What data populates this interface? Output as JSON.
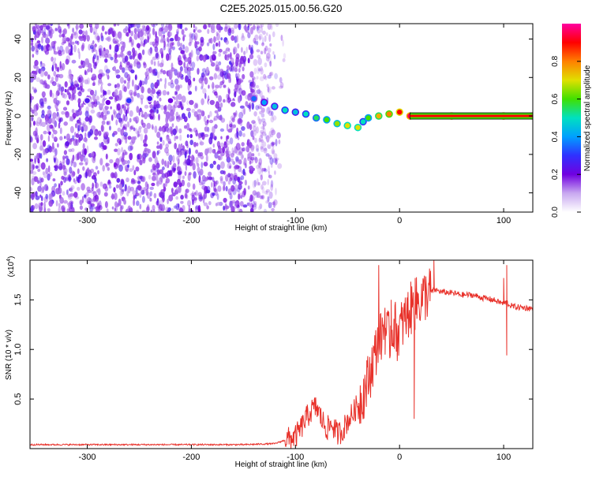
{
  "title": "C2E5.2025.015.00.56.G20",
  "chart_data": [
    {
      "type": "heatmap",
      "xlabel": "Height of straight line (km)",
      "ylabel": "Frequency (Hz)",
      "xlim": [
        -355,
        128
      ],
      "ylim": [
        -50,
        48
      ],
      "x_ticks": [
        -300,
        -200,
        -100,
        0,
        100
      ],
      "x_tick_labels": [
        "-300",
        "-200",
        "-100",
        "0",
        "100"
      ],
      "y_ticks": [
        -40,
        -20,
        0,
        20,
        40
      ],
      "y_tick_labels": [
        "-40",
        "-20",
        "0",
        "20",
        "40"
      ],
      "colorbar": {
        "label": "Normalized spectral amplitude",
        "range": [
          0,
          1
        ],
        "ticks": [
          0.0,
          0.2,
          0.4,
          0.6,
          0.8
        ],
        "tick_labels": [
          "0.0",
          "0.2",
          "0.4",
          "0.6",
          "0.8"
        ],
        "colormap": [
          "#ffffff",
          "#c8a8f0",
          "#7000e0",
          "#3030ff",
          "#00a0ff",
          "#00e0c0",
          "#40e000",
          "#e0e000",
          "#ff8000",
          "#ff0000",
          "#ff00a0"
        ]
      },
      "noise_region_x": [
        -355,
        -125
      ],
      "signal_track": {
        "x": [
          -300,
          -280,
          -260,
          -240,
          -220,
          -200,
          -180,
          -160,
          -140,
          -130,
          -120,
          -110,
          -100,
          -90,
          -80,
          -70,
          -60,
          -50,
          -40,
          -35,
          -30,
          -20,
          -10,
          0,
          10,
          50,
          100,
          128
        ],
        "frequency": [
          8,
          7,
          8,
          9,
          8,
          7,
          7,
          6,
          9,
          7,
          5,
          3,
          2,
          1,
          -1,
          -2,
          -4,
          -5,
          -6,
          -3,
          -1,
          0,
          1,
          2,
          0,
          0,
          0,
          0
        ],
        "amplitude": [
          0.25,
          0.2,
          0.3,
          0.25,
          0.2,
          0.15,
          0.15,
          0.15,
          0.35,
          0.4,
          0.45,
          0.5,
          0.45,
          0.5,
          0.55,
          0.6,
          0.65,
          0.7,
          0.7,
          0.5,
          0.6,
          0.75,
          0.8,
          0.9,
          0.95,
          0.95,
          0.95,
          0.95
        ]
      },
      "grid": false,
      "legend": "colorbar-right"
    },
    {
      "type": "line",
      "xlabel": "Height of straight line (km)",
      "ylabel": "SNR (10 * v/v)",
      "y_multiplier_label": "(x10",
      "y_multiplier_exp": "4",
      "y_multiplier_close": ")",
      "xlim": [
        -355,
        128
      ],
      "ylim": [
        0,
        1.9
      ],
      "x_ticks": [
        -300,
        -200,
        -100,
        0,
        100
      ],
      "x_tick_labels": [
        "-300",
        "-200",
        "-100",
        "0",
        "100"
      ],
      "y_ticks": [
        0.5,
        1.0,
        1.5
      ],
      "y_tick_labels": [
        "0.5",
        "1.0",
        "1.5"
      ],
      "line_color": "#e8312a",
      "series": [
        {
          "x": [
            -355,
            -300,
            -250,
            -200,
            -150,
            -120,
            -100,
            -95,
            -90,
            -85,
            -80,
            -75,
            -70,
            -65,
            -60,
            -55,
            -50,
            -45,
            -40,
            -35,
            -30,
            -25,
            -22,
            -20,
            -18,
            -15,
            -12,
            -10,
            -8,
            -5,
            -2,
            0,
            5,
            10,
            15,
            20,
            25,
            30,
            35,
            40,
            50,
            60,
            70,
            80,
            90,
            95,
            100,
            103,
            105,
            110,
            120,
            128
          ],
          "y": [
            0.04,
            0.04,
            0.04,
            0.04,
            0.04,
            0.05,
            0.12,
            0.2,
            0.3,
            0.38,
            0.42,
            0.3,
            0.2,
            0.25,
            0.15,
            0.18,
            0.28,
            0.35,
            0.45,
            0.55,
            0.7,
            0.9,
            1.0,
            1.2,
            1.1,
            1.25,
            1.15,
            1.1,
            1.2,
            1.25,
            1.15,
            1.2,
            1.3,
            1.4,
            1.45,
            1.5,
            1.55,
            1.58,
            1.6,
            1.58,
            1.57,
            1.55,
            1.55,
            1.52,
            1.5,
            1.48,
            1.46,
            1.48,
            1.45,
            1.43,
            1.42,
            1.41
          ]
        }
      ],
      "spikes": [
        {
          "x": -20,
          "y": 1.85
        },
        {
          "x": -14,
          "y": 1.42
        },
        {
          "x": -8,
          "y": 1.5
        },
        {
          "x": 15,
          "y": 1.72
        },
        {
          "x": 33,
          "y": 1.9
        },
        {
          "x": 100,
          "y": 1.72
        },
        {
          "x": 103,
          "y": 1.85
        },
        {
          "x": 103,
          "y": 0.94
        },
        {
          "x": 14,
          "y": 0.3
        }
      ],
      "grid": false
    }
  ]
}
